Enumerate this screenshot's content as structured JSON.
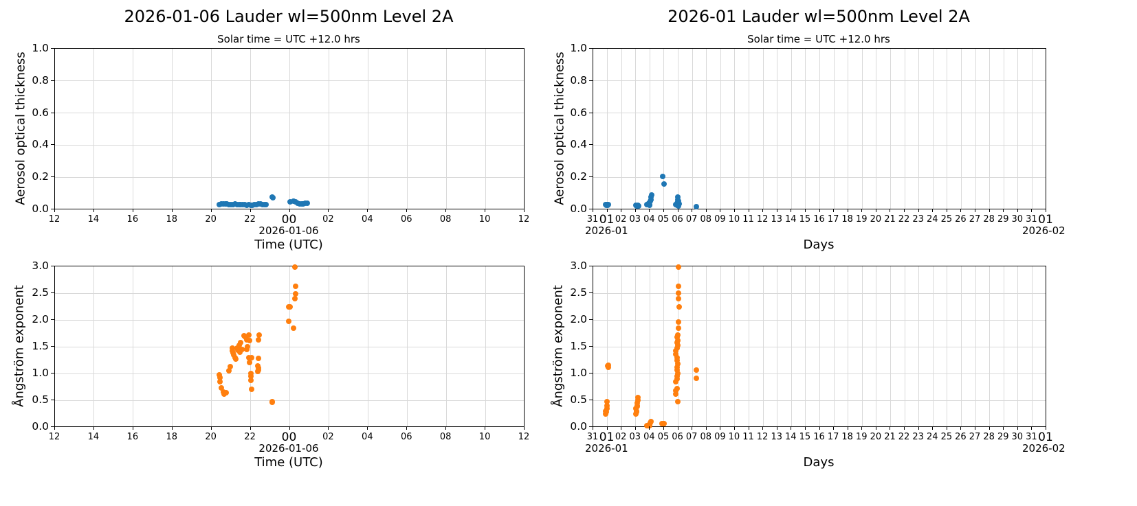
{
  "figure": {
    "left_title": "2026-01-06  Lauder  wl=500nm  Level 2A",
    "right_title": "2026-01  Lauder  wl=500nm  Level 2A",
    "subtitle": "Solar time = UTC +12.0 hrs",
    "colors": {
      "aot": "#1f77b4",
      "angstrom": "#ff7f0e",
      "grid": "#d9d9d9"
    }
  },
  "left_axis": {
    "xticks": [
      "12",
      "14",
      "16",
      "18",
      "20",
      "22",
      "00",
      "02",
      "04",
      "06",
      "08",
      "10",
      "12"
    ],
    "xdate": "2026-01-06",
    "xlabel": "Time (UTC)"
  },
  "right_axis": {
    "xticks": [
      "31",
      "01",
      "02",
      "03",
      "04",
      "05",
      "06",
      "07",
      "08",
      "09",
      "10",
      "11",
      "12",
      "13",
      "14",
      "15",
      "16",
      "17",
      "18",
      "19",
      "20",
      "21",
      "22",
      "23",
      "24",
      "25",
      "26",
      "27",
      "28",
      "29",
      "30",
      "31",
      "01"
    ],
    "xdate_start": "2026-01",
    "xdate_end": "2026-02",
    "xlabel": "Days"
  },
  "aot_axis": {
    "ylabel": "Aerosol optical thickness",
    "yticks": [
      "0.0",
      "0.2",
      "0.4",
      "0.6",
      "0.8",
      "1.0"
    ]
  },
  "ang_axis": {
    "ylabel": "Ångström exponent",
    "yticks": [
      "0.0",
      "0.5",
      "1.0",
      "1.5",
      "2.0",
      "2.5",
      "3.0"
    ]
  },
  "chart_data": [
    {
      "type": "scatter",
      "title": "2026-01-06  Lauder  wl=500nm  Level 2A",
      "subtitle": "Solar time = UTC +12.0 hrs",
      "xlabel": "Time (UTC)",
      "ylabel": "Aerosol optical thickness",
      "x_unit": "hours since 2026-01-05 12:00 UTC",
      "xlim": [
        0,
        24
      ],
      "ylim": [
        0.0,
        1.0
      ],
      "grid": true,
      "color": "#1f77b4",
      "points": [
        [
          8.4,
          0.032
        ],
        [
          8.5,
          0.034
        ],
        [
          8.6,
          0.035
        ],
        [
          8.7,
          0.033
        ],
        [
          8.8,
          0.035
        ],
        [
          8.9,
          0.031
        ],
        [
          9.0,
          0.03
        ],
        [
          9.1,
          0.032
        ],
        [
          9.2,
          0.033
        ],
        [
          9.3,
          0.031
        ],
        [
          9.4,
          0.03
        ],
        [
          9.5,
          0.029
        ],
        [
          9.6,
          0.031
        ],
        [
          9.7,
          0.028
        ],
        [
          9.8,
          0.027
        ],
        [
          9.9,
          0.028
        ],
        [
          10.0,
          0.027
        ],
        [
          10.1,
          0.026
        ],
        [
          10.2,
          0.028
        ],
        [
          10.3,
          0.031
        ],
        [
          10.4,
          0.034
        ],
        [
          10.5,
          0.033
        ],
        [
          10.6,
          0.031
        ],
        [
          10.7,
          0.03
        ],
        [
          10.8,
          0.028
        ],
        [
          11.1,
          0.078
        ],
        [
          11.15,
          0.072
        ],
        [
          12.0,
          0.045
        ],
        [
          12.2,
          0.05
        ],
        [
          12.3,
          0.046
        ],
        [
          12.4,
          0.04
        ],
        [
          12.5,
          0.036
        ],
        [
          12.6,
          0.033
        ],
        [
          12.7,
          0.036
        ],
        [
          12.8,
          0.039
        ],
        [
          12.9,
          0.037
        ]
      ]
    },
    {
      "type": "scatter",
      "xlabel": "Time (UTC)",
      "ylabel": "Ångström exponent",
      "x_unit": "hours since 2026-01-05 12:00 UTC",
      "xlim": [
        0,
        24
      ],
      "ylim": [
        0.0,
        3.0
      ],
      "grid": true,
      "color": "#ff7f0e",
      "points": [
        [
          8.4,
          0.98
        ],
        [
          8.45,
          0.92
        ],
        [
          8.45,
          0.84
        ],
        [
          8.5,
          0.73
        ],
        [
          8.6,
          0.66
        ],
        [
          8.65,
          0.62
        ],
        [
          8.75,
          0.64
        ],
        [
          8.9,
          1.05
        ],
        [
          8.95,
          1.13
        ],
        [
          9.05,
          1.47
        ],
        [
          9.05,
          1.42
        ],
        [
          9.1,
          1.38
        ],
        [
          9.15,
          1.35
        ],
        [
          9.2,
          1.3
        ],
        [
          9.25,
          1.27
        ],
        [
          9.3,
          1.48
        ],
        [
          9.35,
          1.44
        ],
        [
          9.4,
          1.52
        ],
        [
          9.45,
          1.4
        ],
        [
          9.5,
          1.58
        ],
        [
          9.55,
          1.45
        ],
        [
          9.65,
          1.7
        ],
        [
          9.75,
          1.68
        ],
        [
          9.8,
          1.63
        ],
        [
          9.9,
          1.72
        ],
        [
          9.95,
          1.62
        ],
        [
          9.85,
          1.5
        ],
        [
          9.8,
          1.45
        ],
        [
          9.9,
          1.3
        ],
        [
          9.95,
          1.21
        ],
        [
          10.0,
          1.0
        ],
        [
          10.0,
          0.95
        ],
        [
          10.0,
          0.87
        ],
        [
          10.05,
          0.71
        ],
        [
          10.05,
          1.29
        ],
        [
          10.35,
          1.14
        ],
        [
          10.4,
          1.63
        ],
        [
          10.45,
          1.72
        ],
        [
          10.35,
          1.04
        ],
        [
          10.4,
          1.28
        ],
        [
          10.4,
          1.1
        ],
        [
          10.4,
          1.07
        ],
        [
          11.1,
          0.48
        ],
        [
          11.1,
          0.46
        ],
        [
          11.95,
          2.24
        ],
        [
          11.95,
          1.97
        ],
        [
          12.0,
          2.24
        ],
        [
          12.2,
          1.84
        ],
        [
          12.25,
          2.99
        ],
        [
          12.3,
          2.63
        ],
        [
          12.3,
          2.49
        ],
        [
          12.25,
          2.4
        ]
      ]
    },
    {
      "type": "scatter",
      "title": "2026-01  Lauder  wl=500nm  Level 2A",
      "subtitle": "Solar time = UTC +12.0 hrs",
      "xlabel": "Days",
      "ylabel": "Aerosol optical thickness",
      "x_unit": "days since 2025-12-31 00:00",
      "xlim": [
        0,
        32
      ],
      "ylim": [
        0.0,
        1.0
      ],
      "grid": true,
      "color": "#1f77b4",
      "points": [
        [
          0.85,
          0.03
        ],
        [
          0.9,
          0.032
        ],
        [
          0.95,
          0.028
        ],
        [
          1.0,
          0.03
        ],
        [
          1.05,
          0.03
        ],
        [
          0.9,
          0.026
        ],
        [
          1.0,
          0.026
        ],
        [
          3.0,
          0.025
        ],
        [
          3.05,
          0.02
        ],
        [
          3.1,
          0.022
        ],
        [
          3.15,
          0.025
        ],
        [
          3.2,
          0.02
        ],
        [
          3.8,
          0.03
        ],
        [
          3.9,
          0.035
        ],
        [
          3.95,
          0.04
        ],
        [
          4.0,
          0.03
        ],
        [
          4.05,
          0.05
        ],
        [
          4.1,
          0.06
        ],
        [
          4.1,
          0.075
        ],
        [
          4.15,
          0.09
        ],
        [
          4.0,
          0.025
        ],
        [
          4.9,
          0.205
        ],
        [
          5.0,
          0.158
        ],
        [
          5.85,
          0.03
        ],
        [
          5.9,
          0.04
        ],
        [
          5.95,
          0.045
        ],
        [
          5.9,
          0.025
        ],
        [
          6.0,
          0.05
        ],
        [
          6.05,
          0.035
        ],
        [
          5.95,
          0.06
        ],
        [
          5.95,
          0.078
        ],
        [
          6.0,
          0.02
        ],
        [
          7.3,
          0.015
        ]
      ]
    },
    {
      "type": "scatter",
      "xlabel": "Days",
      "ylabel": "Ångström exponent",
      "x_unit": "days since 2025-12-31 00:00",
      "xlim": [
        0,
        32
      ],
      "ylim": [
        0.0,
        3.0
      ],
      "grid": true,
      "color": "#ff7f0e",
      "points": [
        [
          0.85,
          0.25
        ],
        [
          0.9,
          0.28
        ],
        [
          0.85,
          0.3
        ],
        [
          0.95,
          0.35
        ],
        [
          0.95,
          0.4
        ],
        [
          0.95,
          0.48
        ],
        [
          1.05,
          1.12
        ],
        [
          1.05,
          1.16
        ],
        [
          1.0,
          1.14
        ],
        [
          3.0,
          0.25
        ],
        [
          3.05,
          0.3
        ],
        [
          3.0,
          0.35
        ],
        [
          3.1,
          0.4
        ],
        [
          3.1,
          0.45
        ],
        [
          3.15,
          0.5
        ],
        [
          3.15,
          0.55
        ],
        [
          3.1,
          0.38
        ],
        [
          3.05,
          0.28
        ],
        [
          3.8,
          0.02
        ],
        [
          3.9,
          0.03
        ],
        [
          4.0,
          0.05
        ],
        [
          4.05,
          0.08
        ],
        [
          4.1,
          0.1
        ],
        [
          4.0,
          0.02
        ],
        [
          4.85,
          0.06
        ],
        [
          4.95,
          0.06
        ],
        [
          5.0,
          0.06
        ],
        [
          5.85,
          0.62
        ],
        [
          5.85,
          0.68
        ],
        [
          5.9,
          0.72
        ],
        [
          5.95,
          0.47
        ],
        [
          5.85,
          0.85
        ],
        [
          5.9,
          0.9
        ],
        [
          5.9,
          0.95
        ],
        [
          5.95,
          1.0
        ],
        [
          5.9,
          1.06
        ],
        [
          5.9,
          1.12
        ],
        [
          5.95,
          1.18
        ],
        [
          5.9,
          1.25
        ],
        [
          5.9,
          1.3
        ],
        [
          5.85,
          1.36
        ],
        [
          5.85,
          1.42
        ],
        [
          5.9,
          1.48
        ],
        [
          5.95,
          1.52
        ],
        [
          5.9,
          1.58
        ],
        [
          5.95,
          1.62
        ],
        [
          5.9,
          1.68
        ],
        [
          5.95,
          1.72
        ],
        [
          6.0,
          1.84
        ],
        [
          6.0,
          1.96
        ],
        [
          6.05,
          2.24
        ],
        [
          6.0,
          2.4
        ],
        [
          6.0,
          2.5
        ],
        [
          6.0,
          2.63
        ],
        [
          6.0,
          2.99
        ],
        [
          7.3,
          1.06
        ],
        [
          7.3,
          0.91
        ]
      ]
    }
  ]
}
